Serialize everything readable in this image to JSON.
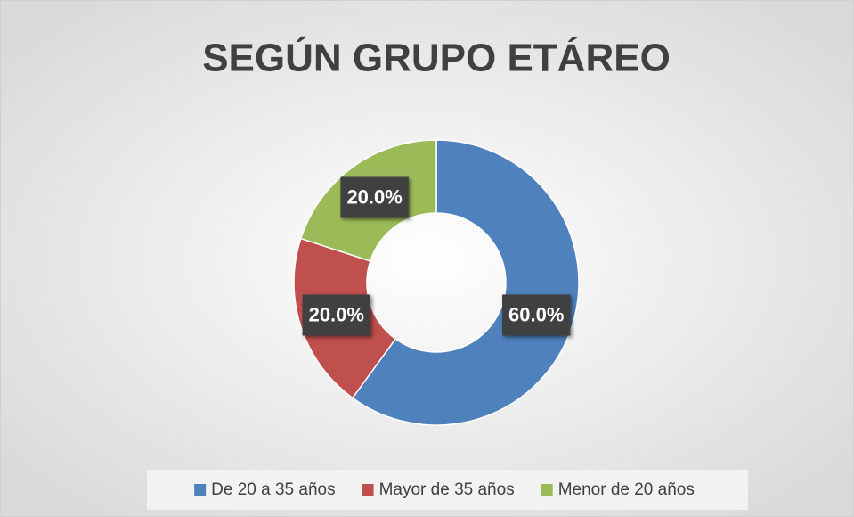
{
  "chart_data": {
    "type": "donut",
    "title": "SEGÚN GRUPO ETÁREO",
    "categories": [
      "De 20 a 35 años",
      "Mayor de 35 años",
      "Menor de 20 años"
    ],
    "values": [
      60,
      20,
      20
    ],
    "value_labels": [
      "60.0%",
      "20.0%",
      "20.0%"
    ],
    "colors": [
      "#4f81bd",
      "#c0504d",
      "#9bbb59"
    ],
    "legend": "bottom"
  }
}
